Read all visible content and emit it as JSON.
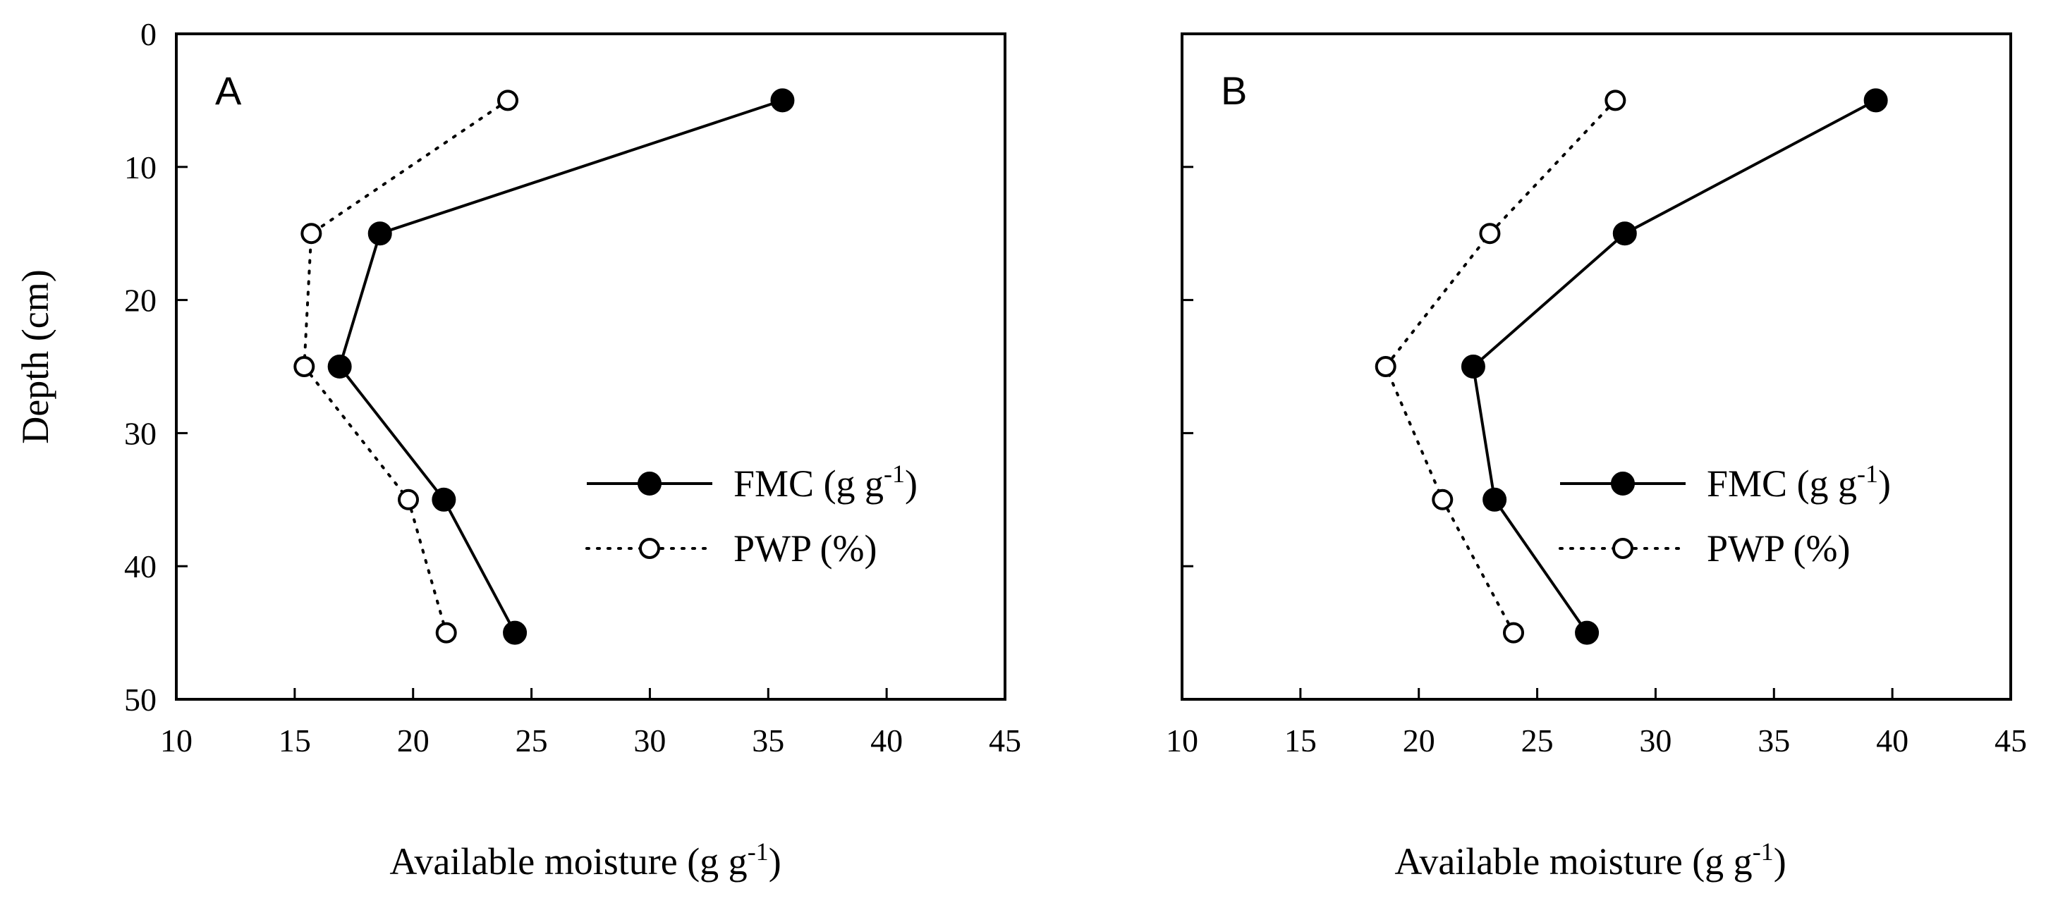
{
  "chart_data": [
    {
      "type": "line",
      "panel_label": "A",
      "xlabel": "Available moisture (g g",
      "xlabel_sup": "-1",
      "xlabel_suffix": ")",
      "ylabel": "Depth (cm)",
      "xlim": [
        10,
        45
      ],
      "ylim": [
        0,
        50
      ],
      "y_inverted": true,
      "x_ticks": [
        10,
        15,
        20,
        25,
        30,
        35,
        40,
        45
      ],
      "y_ticks": [
        0,
        10,
        20,
        30,
        40,
        50
      ],
      "grid": false,
      "legend_position": "center-right",
      "series": [
        {
          "name": "FMC (g g",
          "name_sup": "-1",
          "name_suffix": ")",
          "style": "solid",
          "marker": "filled-circle",
          "points": [
            {
              "x": 35.6,
              "y": 5
            },
            {
              "x": 18.6,
              "y": 15
            },
            {
              "x": 16.9,
              "y": 25
            },
            {
              "x": 21.3,
              "y": 35
            },
            {
              "x": 24.3,
              "y": 45
            }
          ]
        },
        {
          "name": "PWP (%)",
          "style": "dotted",
          "marker": "open-circle",
          "points": [
            {
              "x": 24.0,
              "y": 5
            },
            {
              "x": 15.7,
              "y": 15
            },
            {
              "x": 15.4,
              "y": 25
            },
            {
              "x": 19.8,
              "y": 35
            },
            {
              "x": 21.4,
              "y": 45
            }
          ]
        }
      ]
    },
    {
      "type": "line",
      "panel_label": "B",
      "xlabel": "Available moisture (g g",
      "xlabel_sup": "-1",
      "xlabel_suffix": ")",
      "ylabel": "",
      "xlim": [
        10,
        45
      ],
      "ylim": [
        0,
        50
      ],
      "y_inverted": true,
      "x_ticks": [
        10,
        15,
        20,
        25,
        30,
        35,
        40,
        45
      ],
      "y_ticks": [
        0,
        10,
        20,
        30,
        40,
        50
      ],
      "show_y_tick_labels": false,
      "grid": false,
      "legend_position": "center-right",
      "series": [
        {
          "name": "FMC (g g",
          "name_sup": "-1",
          "name_suffix": ")",
          "style": "solid",
          "marker": "filled-circle",
          "points": [
            {
              "x": 39.3,
              "y": 5
            },
            {
              "x": 28.7,
              "y": 15
            },
            {
              "x": 22.3,
              "y": 25
            },
            {
              "x": 23.2,
              "y": 35
            },
            {
              "x": 27.1,
              "y": 45
            }
          ]
        },
        {
          "name": "PWP (%)",
          "style": "dotted",
          "marker": "open-circle",
          "points": [
            {
              "x": 28.3,
              "y": 5
            },
            {
              "x": 23.0,
              "y": 15
            },
            {
              "x": 18.6,
              "y": 25
            },
            {
              "x": 21.0,
              "y": 35
            },
            {
              "x": 24.0,
              "y": 45
            }
          ]
        }
      ]
    }
  ],
  "colors": {
    "axis": "#000000",
    "line": "#000000",
    "marker_fill_open": "#ffffff",
    "marker_fill_filled": "#000000"
  }
}
